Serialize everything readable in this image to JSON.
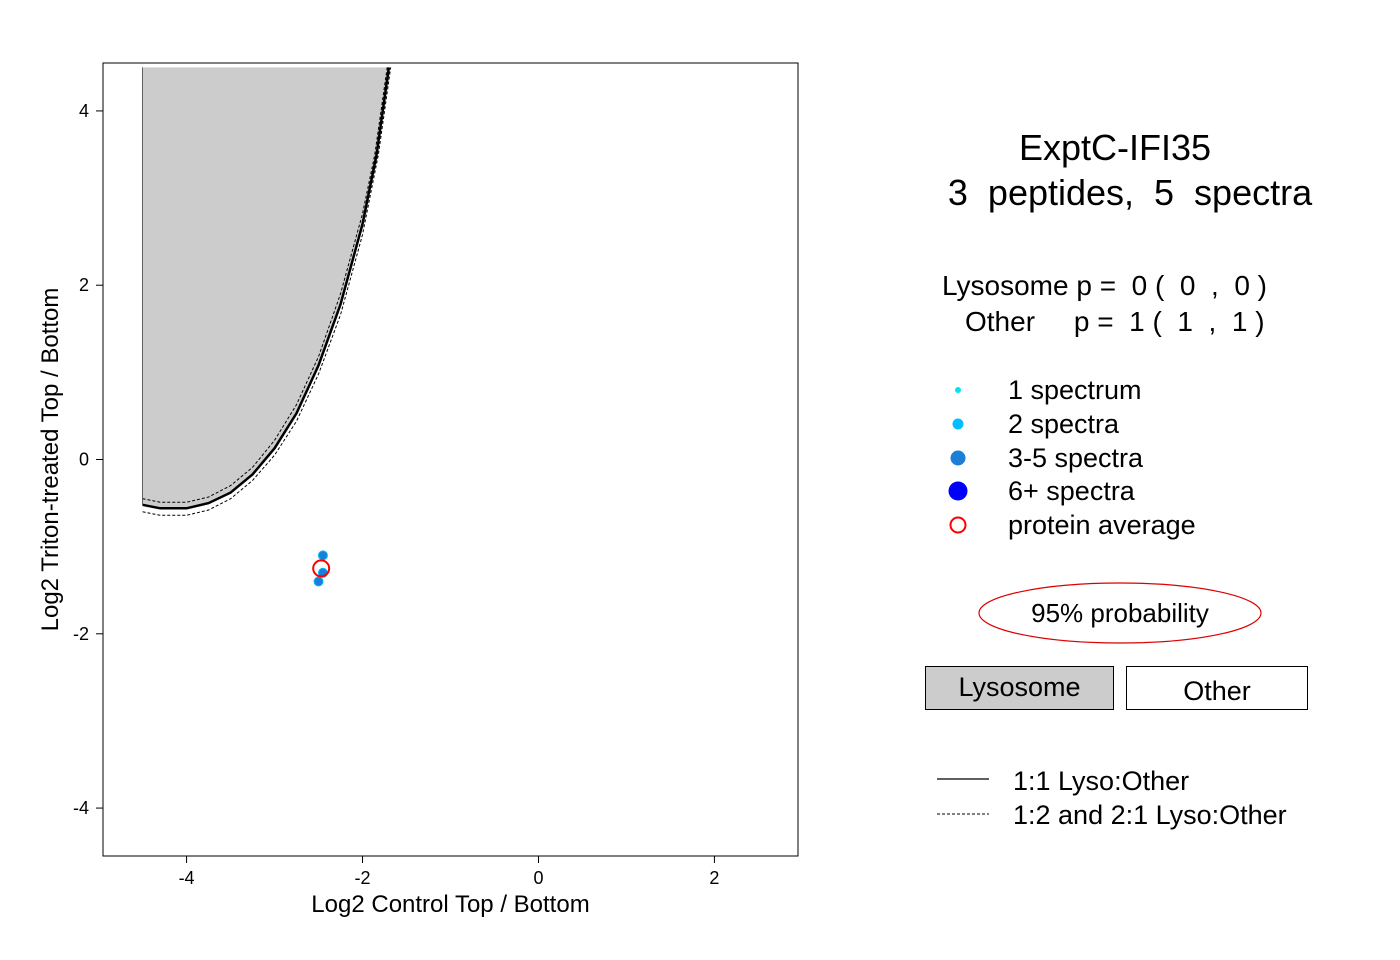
{
  "chart_data": {
    "type": "scatter",
    "xlabel": "Log2 Control Top / Bottom",
    "ylabel": "Log2 Triton-treated Top / Bottom",
    "xlim": [
      -4.95,
      2.95
    ],
    "ylim": [
      -4.55,
      4.55
    ],
    "xticks": [
      -4,
      -2,
      0,
      2
    ],
    "yticks": [
      -4,
      -2,
      0,
      2,
      4
    ],
    "grid": false,
    "lysosome_region": {
      "description": "shaded",
      "boundary_1_1": [
        [
          -4.5,
          4.5
        ],
        [
          -4.5,
          -0.52
        ],
        [
          -4.3,
          -0.56
        ],
        [
          -4.0,
          -0.56
        ],
        [
          -3.75,
          -0.5
        ],
        [
          -3.5,
          -0.38
        ],
        [
          -3.25,
          -0.17
        ],
        [
          -3.0,
          0.13
        ],
        [
          -2.75,
          0.53
        ],
        [
          -2.5,
          1.08
        ],
        [
          -2.25,
          1.78
        ],
        [
          -2.0,
          2.7
        ],
        [
          -1.84,
          3.5
        ],
        [
          -1.7,
          4.5
        ]
      ],
      "boundary_1_2": [
        [
          -4.5,
          -0.45
        ],
        [
          -4.3,
          -0.49
        ],
        [
          -4.0,
          -0.49
        ],
        [
          -3.75,
          -0.43
        ],
        [
          -3.5,
          -0.3
        ],
        [
          -3.25,
          -0.09
        ],
        [
          -3.0,
          0.22
        ],
        [
          -2.75,
          0.63
        ],
        [
          -2.5,
          1.18
        ],
        [
          -2.25,
          1.9
        ],
        [
          -2.0,
          2.82
        ],
        [
          -1.86,
          3.5
        ],
        [
          -1.72,
          4.5
        ]
      ],
      "boundary_2_1": [
        [
          -4.5,
          -0.6
        ],
        [
          -4.3,
          -0.64
        ],
        [
          -4.0,
          -0.64
        ],
        [
          -3.75,
          -0.58
        ],
        [
          -3.5,
          -0.45
        ],
        [
          -3.25,
          -0.24
        ],
        [
          -3.0,
          0.05
        ],
        [
          -2.75,
          0.44
        ],
        [
          -2.5,
          0.98
        ],
        [
          -2.25,
          1.66
        ],
        [
          -2.0,
          2.58
        ],
        [
          -1.82,
          3.5
        ],
        [
          -1.68,
          4.5
        ]
      ]
    },
    "series": [
      {
        "category": "3-5 spectra",
        "points": [
          [
            -2.45,
            -1.1
          ],
          [
            -2.45,
            -1.3
          ],
          [
            -2.5,
            -1.4
          ]
        ]
      },
      {
        "category": "protein average",
        "points": [
          [
            -2.47,
            -1.25
          ]
        ]
      }
    ]
  },
  "title": "ExptC-IFI35",
  "subtitle": "3  peptides,  5  spectra",
  "probabilities": {
    "lysosome": "Lysosome p =  0 (  0  ,  0 )",
    "other": "Other     p =  1 (  1  ,  1 )"
  },
  "legend": [
    {
      "label": "1 spectrum",
      "color": "#00e5ee",
      "size": 3
    },
    {
      "label": "2 spectra",
      "color": "#00bfff",
      "size": 5.5
    },
    {
      "label": "3-5 spectra",
      "color": "#1c7ed6",
      "size": 7.5
    },
    {
      "label": "6+ spectra",
      "color": "#0000ff",
      "size": 9.5
    },
    {
      "label": "protein average",
      "color": "#ff0000",
      "size": 8,
      "hollow": true
    }
  ],
  "probability_ellipse_label": "95% probability",
  "region_boxes": {
    "lysosome": "Lysosome",
    "other": "Other"
  },
  "line_legend": {
    "solid": "1:1 Lyso:Other",
    "dashed": "1:2 and 2:1 Lyso:Other"
  },
  "colors": {
    "shade": "#cccccc",
    "point": "#1c7ed6",
    "average": "#ff0000"
  }
}
